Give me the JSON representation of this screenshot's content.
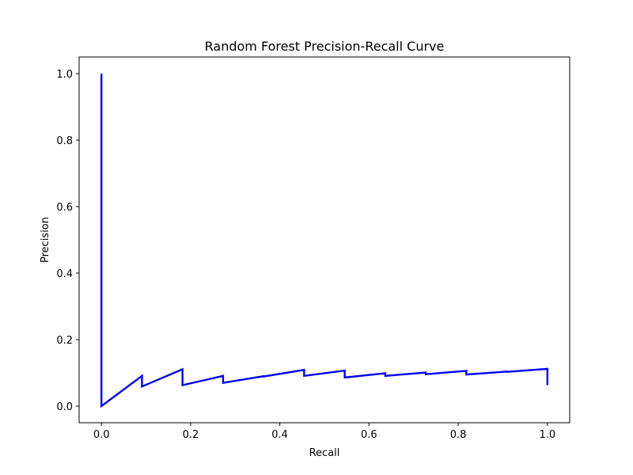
{
  "chart_data": {
    "type": "line",
    "title": "Random Forest Precision-Recall Curve",
    "xlabel": "Recall",
    "ylabel": "Precision",
    "xlim": [
      -0.05,
      1.05
    ],
    "ylim": [
      -0.05,
      1.05
    ],
    "x_ticks": [
      0.0,
      0.2,
      0.4,
      0.6,
      0.8,
      1.0
    ],
    "x_tick_labels": [
      "0.0",
      "0.2",
      "0.4",
      "0.6",
      "0.8",
      "1.0"
    ],
    "y_ticks": [
      0.0,
      0.2,
      0.4,
      0.6,
      0.8,
      1.0
    ],
    "y_tick_labels": [
      "0.0",
      "0.2",
      "0.4",
      "0.6",
      "0.8",
      "1.0"
    ],
    "grid": false,
    "series": [
      {
        "color": "#0000ff",
        "x": [
          0.0,
          0.0,
          0.0909,
          0.0909,
          0.1818,
          0.1818,
          0.2727,
          0.2727,
          0.3636,
          0.3636,
          0.4545,
          0.4545,
          0.5455,
          0.5455,
          0.6364,
          0.6364,
          0.7273,
          0.7273,
          0.8182,
          0.8182,
          0.9091,
          0.9091,
          1.0,
          1.0
        ],
        "y": [
          1.0,
          0.0,
          0.091,
          0.059,
          0.111,
          0.063,
          0.091,
          0.07,
          0.09,
          0.089,
          0.109,
          0.091,
          0.107,
          0.086,
          0.099,
          0.091,
          0.101,
          0.096,
          0.106,
          0.095,
          0.104,
          0.103,
          0.112,
          0.063
        ]
      }
    ]
  }
}
